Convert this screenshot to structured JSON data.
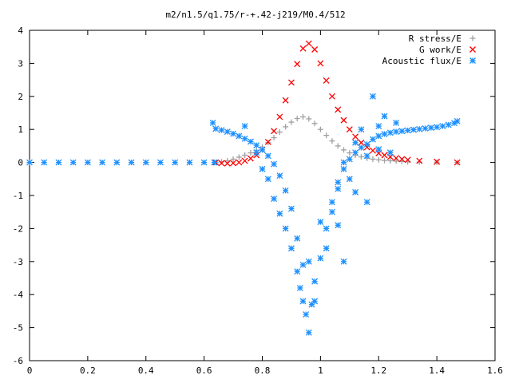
{
  "chart_data": {
    "type": "scatter",
    "title": "m2/n1.5/q1.75/r-+.42-j219/M0.4/512",
    "xlabel": "",
    "ylabel": "",
    "xlim": [
      0,
      1.6
    ],
    "ylim": [
      -6,
      4
    ],
    "x_ticks": [
      "0",
      "0.2",
      "0.4",
      "0.6",
      "0.8",
      "1",
      "1.2",
      "1.4",
      "1.6"
    ],
    "y_ticks": [
      "4",
      "3",
      "2",
      "1",
      "0",
      "-1",
      "-2",
      "-3",
      "-4",
      "-5",
      "-6"
    ],
    "grid": false,
    "legend_position": "top-right",
    "series": [
      {
        "name": "R stress/E",
        "marker": "+",
        "color": "#a0a0a0",
        "points": [
          [
            0.64,
            0.0
          ],
          [
            0.66,
            0.02
          ],
          [
            0.68,
            0.05
          ],
          [
            0.7,
            0.1
          ],
          [
            0.72,
            0.16
          ],
          [
            0.74,
            0.22
          ],
          [
            0.76,
            0.29
          ],
          [
            0.78,
            0.37
          ],
          [
            0.8,
            0.47
          ],
          [
            0.82,
            0.6
          ],
          [
            0.84,
            0.75
          ],
          [
            0.86,
            0.92
          ],
          [
            0.88,
            1.08
          ],
          [
            0.9,
            1.22
          ],
          [
            0.92,
            1.33
          ],
          [
            0.94,
            1.38
          ],
          [
            0.96,
            1.32
          ],
          [
            0.98,
            1.18
          ],
          [
            1.0,
            1.0
          ],
          [
            1.02,
            0.82
          ],
          [
            1.04,
            0.65
          ],
          [
            1.06,
            0.5
          ],
          [
            1.08,
            0.38
          ],
          [
            1.1,
            0.29
          ],
          [
            1.12,
            0.22
          ],
          [
            1.14,
            0.17
          ],
          [
            1.16,
            0.13
          ],
          [
            1.18,
            0.1
          ],
          [
            1.2,
            0.08
          ],
          [
            1.22,
            0.06
          ],
          [
            1.24,
            0.05
          ],
          [
            1.26,
            0.04
          ],
          [
            1.28,
            0.03
          ],
          [
            1.3,
            0.02
          ],
          [
            1.34,
            0.01
          ],
          [
            1.4,
            0.01
          ],
          [
            1.47,
            0.0
          ]
        ]
      },
      {
        "name": "G work/E",
        "marker": "x",
        "color": "#ff0000",
        "points": [
          [
            0.64,
            0.0
          ],
          [
            0.66,
            -0.02
          ],
          [
            0.68,
            -0.03
          ],
          [
            0.7,
            -0.02
          ],
          [
            0.72,
            0.0
          ],
          [
            0.74,
            0.05
          ],
          [
            0.76,
            0.12
          ],
          [
            0.78,
            0.22
          ],
          [
            0.8,
            0.38
          ],
          [
            0.82,
            0.62
          ],
          [
            0.84,
            0.95
          ],
          [
            0.86,
            1.38
          ],
          [
            0.88,
            1.88
          ],
          [
            0.9,
            2.42
          ],
          [
            0.92,
            2.98
          ],
          [
            0.94,
            3.45
          ],
          [
            0.96,
            3.6
          ],
          [
            0.98,
            3.42
          ],
          [
            1.0,
            3.0
          ],
          [
            1.02,
            2.48
          ],
          [
            1.04,
            2.0
          ],
          [
            1.06,
            1.6
          ],
          [
            1.08,
            1.28
          ],
          [
            1.1,
            1.0
          ],
          [
            1.12,
            0.78
          ],
          [
            1.14,
            0.6
          ],
          [
            1.16,
            0.46
          ],
          [
            1.18,
            0.36
          ],
          [
            1.2,
            0.28
          ],
          [
            1.22,
            0.22
          ],
          [
            1.24,
            0.17
          ],
          [
            1.26,
            0.13
          ],
          [
            1.28,
            0.1
          ],
          [
            1.3,
            0.08
          ],
          [
            1.34,
            0.05
          ],
          [
            1.4,
            0.02
          ],
          [
            1.47,
            0.0
          ]
        ]
      },
      {
        "name": "Acoustic flux/E",
        "marker": "*",
        "color": "#1e90ff",
        "points": [
          [
            0.0,
            0.0
          ],
          [
            0.05,
            0.0
          ],
          [
            0.1,
            0.0
          ],
          [
            0.15,
            0.0
          ],
          [
            0.2,
            0.0
          ],
          [
            0.25,
            0.0
          ],
          [
            0.3,
            0.0
          ],
          [
            0.35,
            0.0
          ],
          [
            0.4,
            0.0
          ],
          [
            0.45,
            0.0
          ],
          [
            0.5,
            0.0
          ],
          [
            0.55,
            0.0
          ],
          [
            0.6,
            0.0
          ],
          [
            0.635,
            0.0
          ],
          [
            0.63,
            1.2
          ],
          [
            0.64,
            1.02
          ],
          [
            0.66,
            0.98
          ],
          [
            0.68,
            0.93
          ],
          [
            0.7,
            0.87
          ],
          [
            0.72,
            0.8
          ],
          [
            0.74,
            0.72
          ],
          [
            0.76,
            0.63
          ],
          [
            0.78,
            0.52
          ],
          [
            0.8,
            0.38
          ],
          [
            0.82,
            0.2
          ],
          [
            0.84,
            -0.05
          ],
          [
            0.86,
            -0.4
          ],
          [
            0.88,
            -0.85
          ],
          [
            0.9,
            -1.4
          ],
          [
            0.92,
            -2.3
          ],
          [
            0.94,
            -3.1
          ],
          [
            0.95,
            -4.6
          ],
          [
            0.96,
            -5.15
          ],
          [
            0.97,
            -4.3
          ],
          [
            0.98,
            -3.6
          ],
          [
            1.0,
            -2.9
          ],
          [
            1.02,
            -2.0
          ],
          [
            1.04,
            -1.2
          ],
          [
            1.06,
            -0.6
          ],
          [
            1.08,
            -0.2
          ],
          [
            1.1,
            0.1
          ],
          [
            1.12,
            0.3
          ],
          [
            1.14,
            0.45
          ],
          [
            1.16,
            0.55
          ],
          [
            1.18,
            0.7
          ],
          [
            1.2,
            0.8
          ],
          [
            1.22,
            0.86
          ],
          [
            1.24,
            0.9
          ],
          [
            1.26,
            0.93
          ],
          [
            1.28,
            0.95
          ],
          [
            1.3,
            0.97
          ],
          [
            1.32,
            0.99
          ],
          [
            1.34,
            1.01
          ],
          [
            1.36,
            1.03
          ],
          [
            1.38,
            1.05
          ],
          [
            1.4,
            1.07
          ],
          [
            1.42,
            1.1
          ],
          [
            1.44,
            1.14
          ],
          [
            1.46,
            1.19
          ],
          [
            1.47,
            1.25
          ],
          [
            0.74,
            1.1
          ],
          [
            0.78,
            0.3
          ],
          [
            0.8,
            -0.2
          ],
          [
            0.82,
            -0.5
          ],
          [
            0.84,
            -1.1
          ],
          [
            0.86,
            -1.55
          ],
          [
            0.88,
            -2.0
          ],
          [
            0.9,
            -2.6
          ],
          [
            0.92,
            -3.3
          ],
          [
            0.93,
            -3.8
          ],
          [
            0.94,
            -4.2
          ],
          [
            0.96,
            -3.0
          ],
          [
            0.98,
            -4.2
          ],
          [
            1.0,
            -1.8
          ],
          [
            1.02,
            -2.6
          ],
          [
            1.04,
            -1.5
          ],
          [
            1.06,
            -0.8
          ],
          [
            1.08,
            0.0
          ],
          [
            1.1,
            -0.5
          ],
          [
            1.12,
            0.6
          ],
          [
            1.14,
            1.0
          ],
          [
            1.16,
            0.2
          ],
          [
            1.18,
            2.0
          ],
          [
            1.2,
            1.1
          ],
          [
            1.22,
            1.4
          ],
          [
            1.24,
            0.3
          ],
          [
            1.26,
            1.2
          ],
          [
            1.08,
            -3.0
          ],
          [
            1.06,
            -1.9
          ],
          [
            1.12,
            -0.9
          ],
          [
            1.16,
            -1.2
          ],
          [
            1.2,
            0.4
          ]
        ]
      }
    ]
  }
}
